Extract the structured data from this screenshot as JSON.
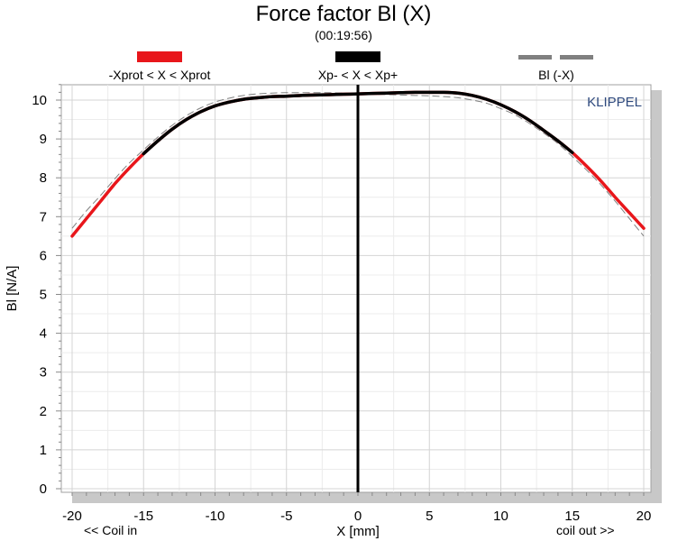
{
  "chart_data": {
    "type": "line",
    "title": "Force factor Bl (X)",
    "subtitle": "(00:19:56)",
    "xlabel": "X [mm]",
    "ylabel": "Bl [N/A]",
    "brand": "KLIPPEL",
    "xlim": [
      -20,
      20
    ],
    "ylim": [
      0,
      10.4
    ],
    "x_ticks": [
      -20,
      -15,
      -10,
      -5,
      0,
      5,
      10,
      15,
      20
    ],
    "y_ticks": [
      0,
      1,
      2,
      3,
      4,
      5,
      6,
      7,
      8,
      9,
      10
    ],
    "grid": true,
    "legend_position": "top",
    "annotations": {
      "left": "<< Coil in",
      "right": "coil out >>"
    },
    "legend": [
      {
        "label": "-Xprot < X < Xprot",
        "color": "#e8161b",
        "style": "solid"
      },
      {
        "label": "Xp- < X < Xp+",
        "color": "#000000",
        "style": "solid"
      },
      {
        "label": "Bl (-X)",
        "color": "#808080",
        "style": "dashed"
      }
    ],
    "marker_x": 0,
    "xprot": 15,
    "series": [
      {
        "name": "Bl (X)",
        "color": "#e8161b",
        "x": [
          -20,
          -19,
          -18,
          -17,
          -16,
          -15,
          -14,
          -13,
          -12,
          -11,
          -10,
          -9,
          -8,
          -7,
          -6,
          -5,
          -4,
          -3,
          -2,
          -1,
          0,
          1,
          2,
          3,
          4,
          5,
          6,
          7,
          8,
          9,
          10,
          11,
          12,
          13,
          14,
          15,
          16,
          17,
          18,
          19,
          20
        ],
        "values": [
          6.5,
          6.95,
          7.4,
          7.85,
          8.25,
          8.62,
          8.95,
          9.25,
          9.5,
          9.7,
          9.85,
          9.95,
          10.02,
          10.06,
          10.09,
          10.1,
          10.12,
          10.13,
          10.14,
          10.15,
          10.16,
          10.17,
          10.18,
          10.19,
          10.2,
          10.2,
          10.2,
          10.18,
          10.12,
          10.02,
          9.88,
          9.7,
          9.48,
          9.22,
          8.95,
          8.65,
          8.3,
          7.92,
          7.5,
          7.1,
          6.7
        ]
      },
      {
        "name": "Bl (-X)",
        "color": "#808080",
        "style": "dashed",
        "x": [
          -20,
          -19,
          -18,
          -17,
          -16,
          -15,
          -14,
          -13,
          -12,
          -11,
          -10,
          -9,
          -8,
          -7,
          -6,
          -5,
          -4,
          -3,
          -2,
          -1,
          0,
          1,
          2,
          3,
          4,
          5,
          6,
          7,
          8,
          9,
          10,
          11,
          12,
          13,
          14,
          15,
          16,
          17,
          18,
          19,
          20
        ],
        "values": [
          6.7,
          7.15,
          7.55,
          7.98,
          8.38,
          8.72,
          9.05,
          9.35,
          9.6,
          9.8,
          9.95,
          10.05,
          10.12,
          10.16,
          10.18,
          10.19,
          10.19,
          10.19,
          10.19,
          10.18,
          10.16,
          10.15,
          10.14,
          10.13,
          10.12,
          10.11,
          10.09,
          10.06,
          10.0,
          9.92,
          9.78,
          9.62,
          9.4,
          9.15,
          8.88,
          8.55,
          8.2,
          7.82,
          7.4,
          6.95,
          6.5
        ]
      }
    ]
  }
}
